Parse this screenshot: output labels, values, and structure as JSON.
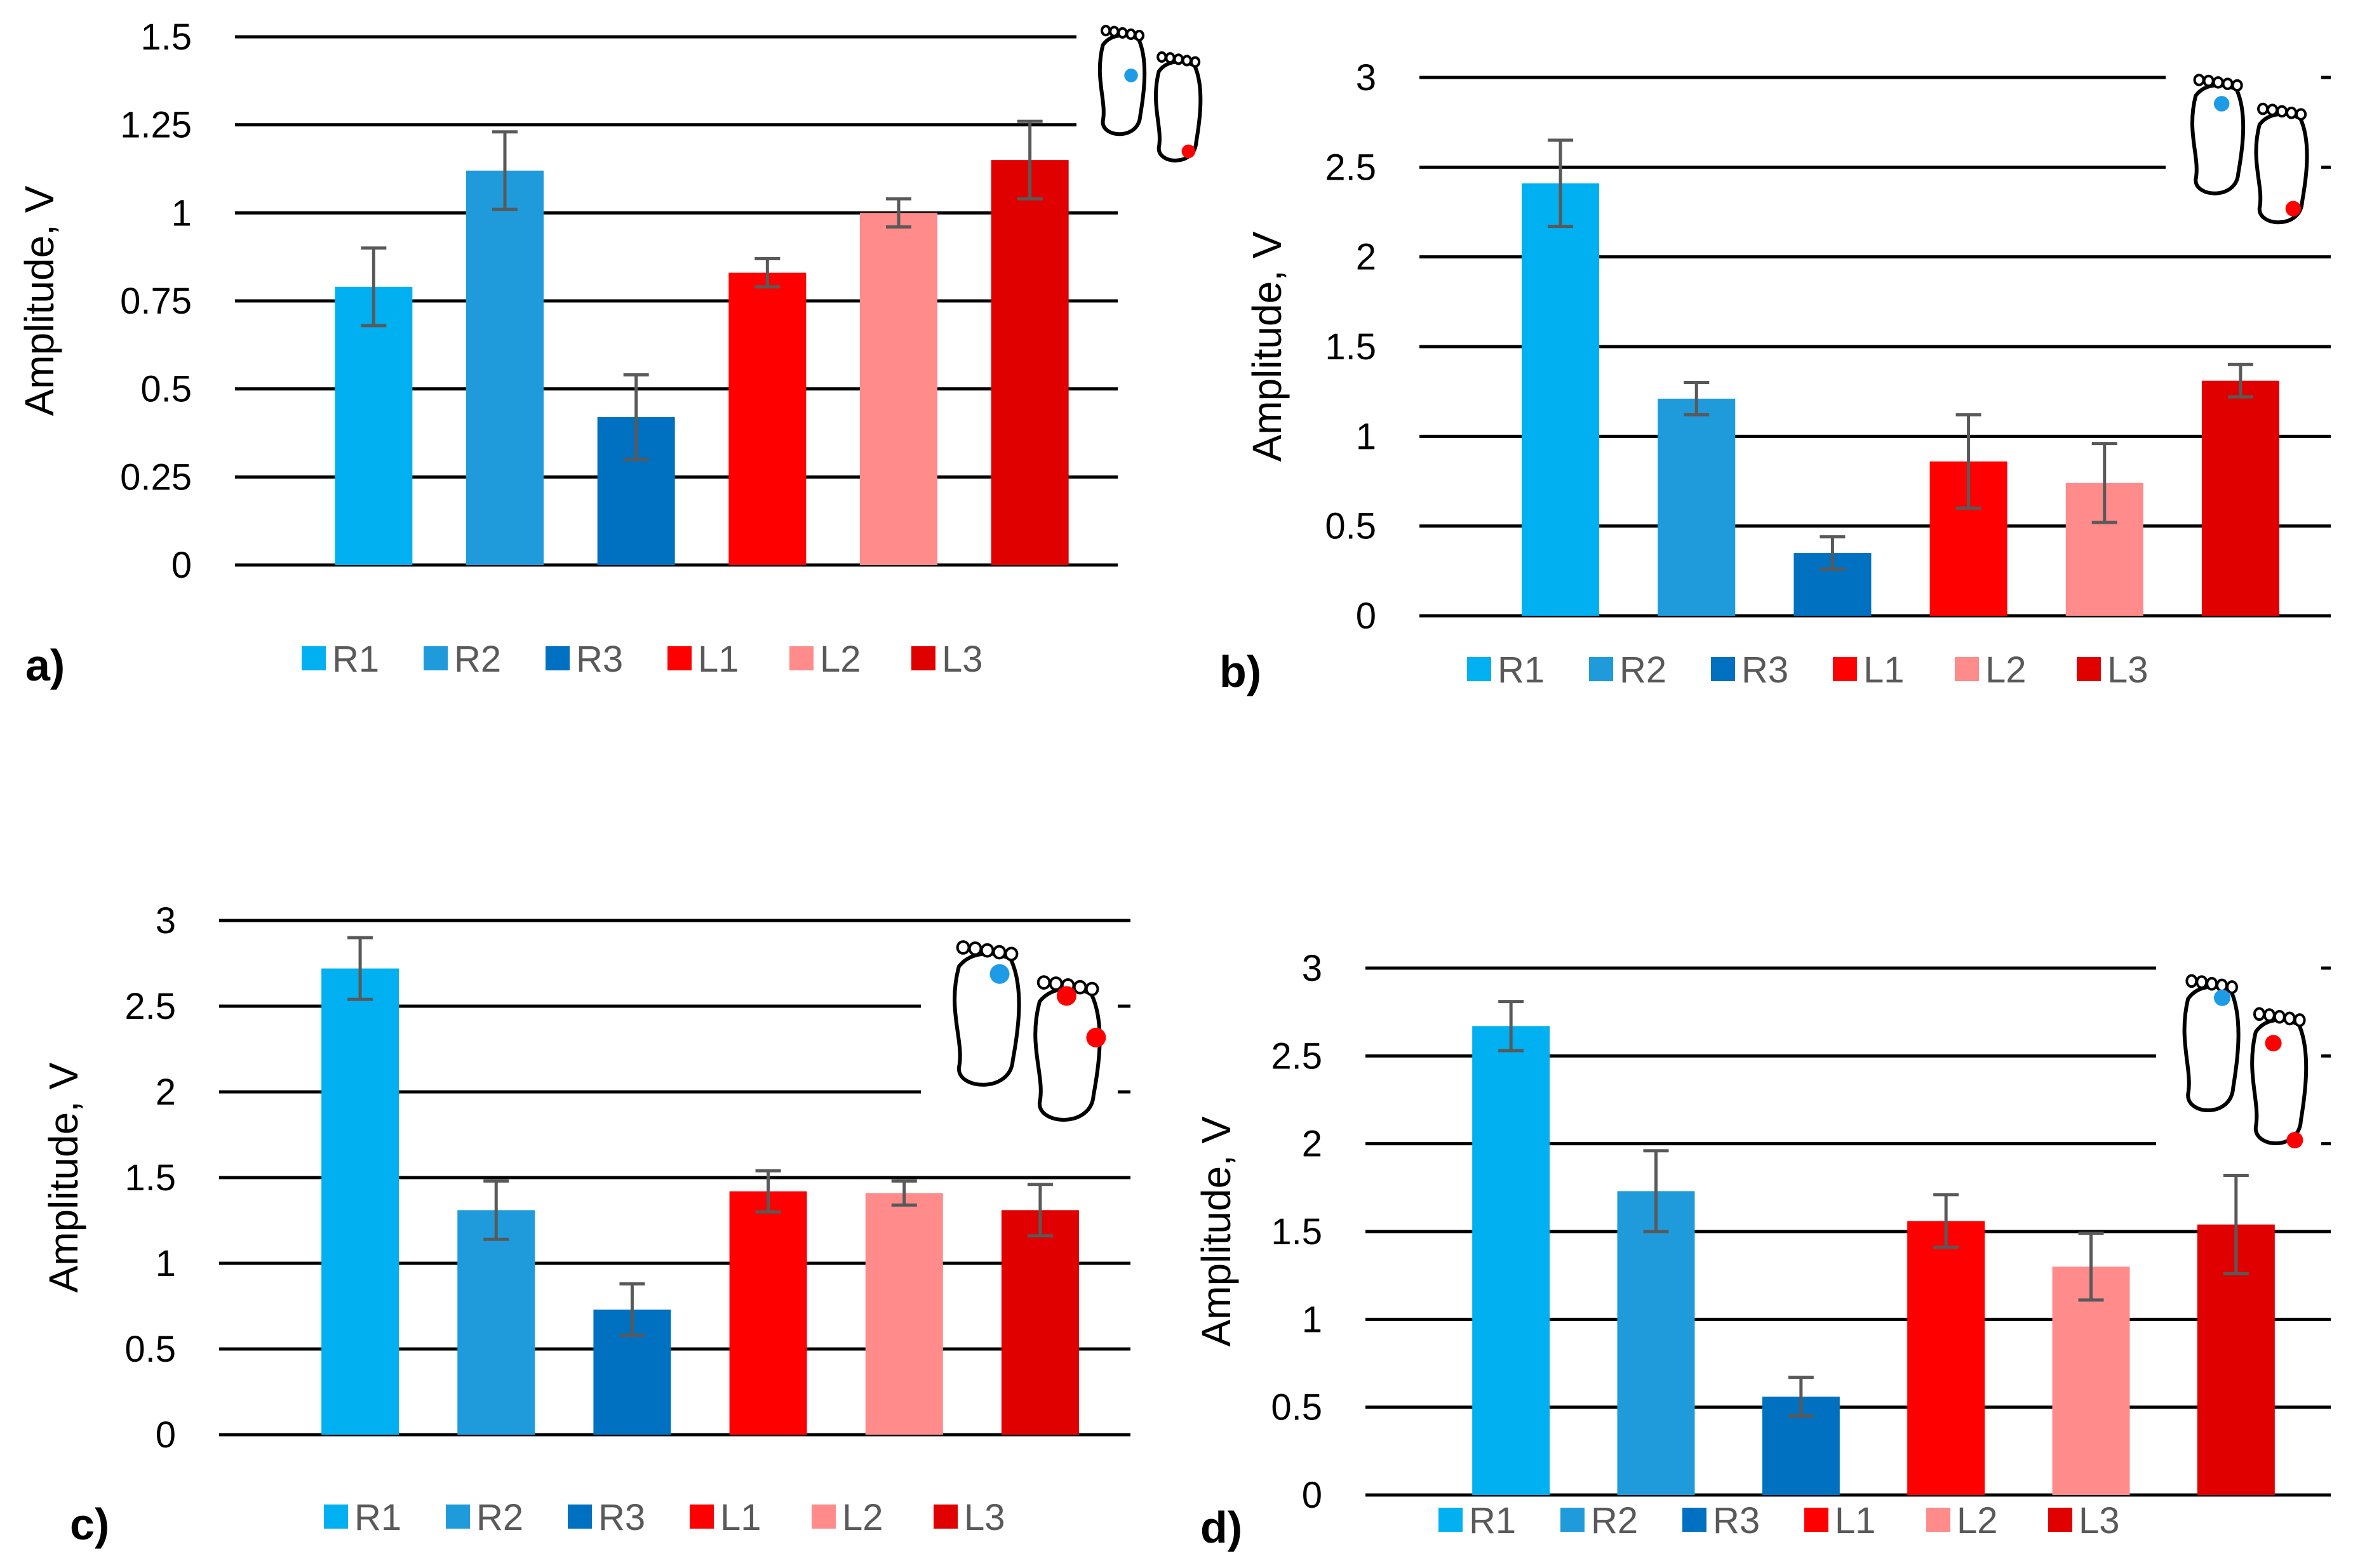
{
  "colors": {
    "R1": "#00b0f0",
    "R2": "#1f9bdc",
    "R3": "#0070c0",
    "L1": "#ff0000",
    "L2": "#ff8b8b",
    "L3": "#e00000",
    "error_bar": "#595959",
    "right_dot": "#1e9be6",
    "left_dot": "#ff0000"
  },
  "chart_data": [
    {
      "panel": "a)",
      "type": "bar",
      "categories": [
        "R1",
        "R2",
        "R3",
        "L1",
        "L2",
        "L3"
      ],
      "values": [
        0.79,
        1.12,
        0.42,
        0.83,
        1.0,
        1.15
      ],
      "errors": [
        0.11,
        0.11,
        0.12,
        0.04,
        0.04,
        0.11
      ],
      "ylabel": "Amplitude, V",
      "ylim": [
        0,
        1.5
      ],
      "yticks": [
        "0",
        "0.25",
        "0.5",
        "0.75",
        "1",
        "1.25",
        "1.5"
      ],
      "grid": true,
      "legend": [
        "R1",
        "R2",
        "R3",
        "L1",
        "L2",
        "L3"
      ],
      "legend_placement": "bottom",
      "icon": "feet-icon: right foot toe, left foot heel"
    },
    {
      "panel": "b)",
      "type": "bar",
      "categories": [
        "R1",
        "R2",
        "R3",
        "L1",
        "L2",
        "L3"
      ],
      "values": [
        2.41,
        1.21,
        0.35,
        0.86,
        0.74,
        1.31
      ],
      "errors": [
        0.24,
        0.09,
        0.09,
        0.26,
        0.22,
        0.09
      ],
      "ylabel": "Amplitude, V",
      "ylim": [
        0,
        3
      ],
      "yticks": [
        "0",
        "0.5",
        "1",
        "1.5",
        "2",
        "2.5",
        "3"
      ],
      "grid": true,
      "legend": [
        "R1",
        "R2",
        "R3",
        "L1",
        "L2",
        "L3"
      ],
      "legend_placement": "bottom",
      "icon": "feet-icon: right foot toe, left foot heel"
    },
    {
      "panel": "c)",
      "type": "bar",
      "categories": [
        "R1",
        "R2",
        "R3",
        "L1",
        "L2",
        "L3"
      ],
      "values": [
        2.72,
        1.31,
        0.73,
        1.42,
        1.41,
        1.31
      ],
      "errors": [
        0.18,
        0.17,
        0.15,
        0.12,
        0.07,
        0.15
      ],
      "ylabel": "Amplitude, V",
      "ylim": [
        0,
        3
      ],
      "yticks": [
        "0",
        "0.5",
        "1",
        "1.5",
        "2",
        "2.5",
        "3"
      ],
      "grid": true,
      "legend": [
        "R1",
        "R2",
        "R3",
        "L1",
        "L2",
        "L3"
      ],
      "legend_placement": "bottom",
      "icon": "feet-icon: right foot toe, left foot toe and ball"
    },
    {
      "panel": "d)",
      "type": "bar",
      "categories": [
        "R1",
        "R2",
        "R3",
        "L1",
        "L2",
        "L3"
      ],
      "values": [
        2.67,
        1.73,
        0.56,
        1.56,
        1.3,
        1.54
      ],
      "errors": [
        0.14,
        0.23,
        0.11,
        0.15,
        0.19,
        0.28
      ],
      "ylabel": "Amplitude, V",
      "ylim": [
        0,
        3
      ],
      "yticks": [
        "0",
        "0.5",
        "1",
        "1.5",
        "2",
        "2.5",
        "3"
      ],
      "grid": true,
      "legend": [
        "R1",
        "R2",
        "R3",
        "L1",
        "L2",
        "L3"
      ],
      "legend_placement": "bottom",
      "icon": "feet-icon: right foot toe, left foot toe and heel"
    }
  ]
}
